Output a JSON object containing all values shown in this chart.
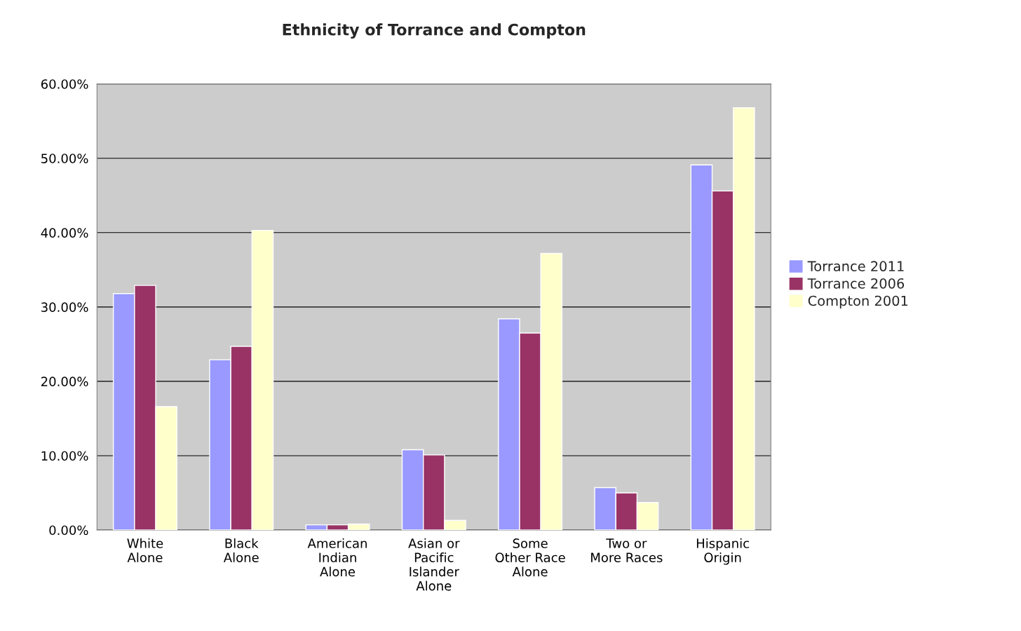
{
  "chart_data": {
    "type": "bar",
    "title": "Ethnicity of Torrance and Compton",
    "categories": [
      "White\nAlone",
      "Black\nAlone",
      "American\nIndian\nAlone",
      "Asian or\nPacific\nIslander\nAlone",
      "Some\nOther Race\nAlone",
      "Two or\nMore Races",
      "Hispanic\nOrigin"
    ],
    "series": [
      {
        "name": "Torrance 2011",
        "color": "#9999ff",
        "values": [
          31.8,
          22.9,
          0.7,
          10.8,
          28.4,
          5.7,
          49.1
        ]
      },
      {
        "name": "Torrance 2006",
        "color": "#993366",
        "values": [
          32.9,
          24.7,
          0.7,
          10.1,
          26.5,
          5.0,
          45.6
        ]
      },
      {
        "name": "Compton 2001",
        "color": "#ffffcc",
        "values": [
          16.6,
          40.3,
          0.8,
          1.3,
          37.2,
          3.7,
          56.8
        ]
      }
    ],
    "ylim": [
      0,
      60
    ],
    "yticks": [
      {
        "value": 0,
        "label": "0.00%"
      },
      {
        "value": 10,
        "label": "10.00%"
      },
      {
        "value": 20,
        "label": "20.00%"
      },
      {
        "value": 30,
        "label": "30.00%"
      },
      {
        "value": 40,
        "label": "40.00%"
      },
      {
        "value": 50,
        "label": "50.00%"
      },
      {
        "value": 60,
        "label": "60.00%"
      }
    ],
    "grid": "y",
    "legend": "right"
  }
}
